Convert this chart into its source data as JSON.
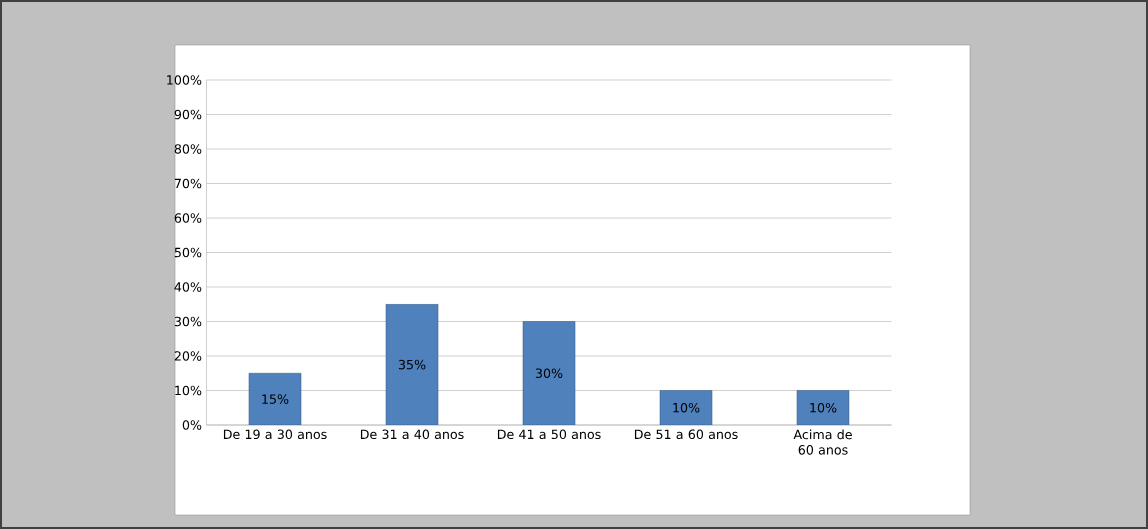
{
  "chart_data": {
    "type": "bar",
    "categories": [
      "De 19 a 30 anos",
      "De 31 a 40 anos",
      "De 41 a 50 anos",
      "De 51 a 60 anos",
      "Acima de 60 anos"
    ],
    "values": [
      15,
      35,
      30,
      10,
      10
    ],
    "value_labels": [
      "15%",
      "35%",
      "30%",
      "10%",
      "10%"
    ],
    "color": "#4f81bd",
    "ylim": [
      0,
      100
    ],
    "yticks": [
      {
        "value": 0,
        "label": "0%"
      },
      {
        "value": 10,
        "label": "10%"
      },
      {
        "value": 20,
        "label": "20%"
      },
      {
        "value": 30,
        "label": "30%"
      },
      {
        "value": 40,
        "label": "40%"
      },
      {
        "value": 50,
        "label": "50%"
      },
      {
        "value": 60,
        "label": "60%"
      },
      {
        "value": 70,
        "label": "70%"
      },
      {
        "value": 80,
        "label": "80%"
      },
      {
        "value": 90,
        "label": "90%"
      },
      {
        "value": 100,
        "label": "100%"
      }
    ],
    "grid": "y"
  }
}
